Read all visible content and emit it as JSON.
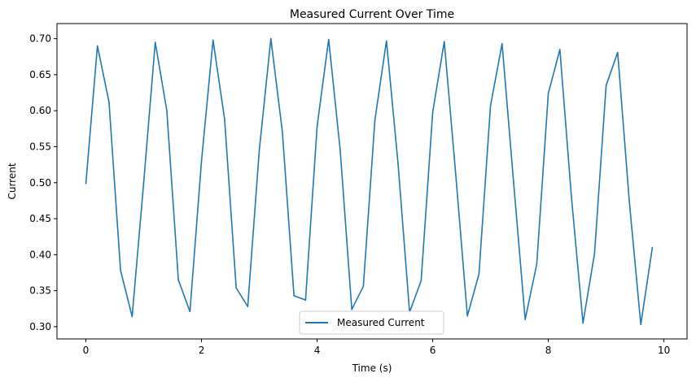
{
  "chart_data": {
    "type": "line",
    "title": "Measured Current Over Time",
    "xlabel": "Time (s)",
    "ylabel": "Current",
    "xlim": [
      -0.5,
      10.4
    ],
    "ylim": [
      0.283,
      0.721
    ],
    "x_ticks": [
      0,
      2,
      4,
      6,
      8,
      10
    ],
    "y_ticks": [
      0.3,
      0.35,
      0.4,
      0.45,
      0.5,
      0.55,
      0.6,
      0.65,
      0.7
    ],
    "x_tick_labels": [
      "0",
      "2",
      "4",
      "6",
      "8",
      "10"
    ],
    "y_tick_labels": [
      "0.30",
      "0.35",
      "0.40",
      "0.45",
      "0.50",
      "0.55",
      "0.60",
      "0.65",
      "0.70"
    ],
    "grid": false,
    "legend": {
      "position": "lower-center",
      "entries": [
        "Measured Current"
      ]
    },
    "series": [
      {
        "name": "Measured Current",
        "color": "#1f77b4",
        "x": [
          0.0,
          0.2,
          0.4,
          0.6,
          0.8,
          1.0,
          1.2,
          1.4,
          1.6,
          1.8,
          2.0,
          2.2,
          2.4,
          2.6,
          2.8,
          3.0,
          3.2,
          3.4,
          3.6,
          3.8,
          4.0,
          4.2,
          4.4,
          4.6,
          4.8,
          5.0,
          5.2,
          5.4,
          5.6,
          5.8,
          6.0,
          6.2,
          6.4,
          6.6,
          6.8,
          7.0,
          7.2,
          7.4,
          7.6,
          7.8,
          8.0,
          8.2,
          8.4,
          8.6,
          8.8,
          9.0,
          9.2,
          9.4,
          9.6,
          9.8
        ],
        "y": [
          0.499,
          0.69,
          0.612,
          0.378,
          0.314,
          0.5,
          0.695,
          0.6,
          0.365,
          0.321,
          0.53,
          0.698,
          0.588,
          0.354,
          0.328,
          0.545,
          0.7,
          0.57,
          0.343,
          0.337,
          0.578,
          0.699,
          0.545,
          0.324,
          0.356,
          0.587,
          0.697,
          0.527,
          0.32,
          0.364,
          0.598,
          0.696,
          0.51,
          0.315,
          0.373,
          0.607,
          0.693,
          0.5,
          0.31,
          0.387,
          0.624,
          0.685,
          0.48,
          0.305,
          0.402,
          0.635,
          0.681,
          0.475,
          0.303,
          0.41
        ]
      }
    ]
  }
}
